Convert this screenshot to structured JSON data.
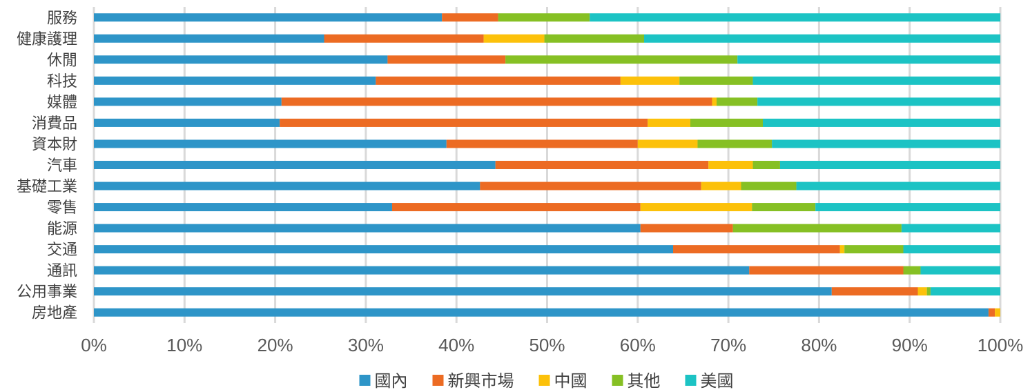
{
  "chart_data": {
    "type": "bar",
    "orientation": "horizontal",
    "stacked": "percent",
    "categories": [
      "服務",
      "健康護理",
      "休閒",
      "科技",
      "媒體",
      "消費品",
      "資本財",
      "汽車",
      "基礎工業",
      "零售",
      "能源",
      "交通",
      "通訊",
      "公用事業",
      "房地產"
    ],
    "series": [
      {
        "name": "國內",
        "color": "#2e95c8",
        "values": [
          38.4,
          25.4,
          32.4,
          31.1,
          20.7,
          20.5,
          38.9,
          44.3,
          42.6,
          32.9,
          60.3,
          63.9,
          72.3,
          81.4,
          98.7
        ]
      },
      {
        "name": "新興市場",
        "color": "#ec6b23",
        "values": [
          6.2,
          17.6,
          13.0,
          27.0,
          47.5,
          40.6,
          21.1,
          23.5,
          24.4,
          27.4,
          10.2,
          18.4,
          17.0,
          9.5,
          0.7
        ]
      },
      {
        "name": "中國",
        "color": "#fcc10a",
        "values": [
          0.0,
          6.7,
          0.0,
          6.5,
          0.5,
          4.7,
          6.6,
          4.9,
          4.4,
          12.3,
          0.0,
          0.5,
          0.0,
          1.0,
          0.6
        ]
      },
      {
        "name": "其他",
        "color": "#86c024",
        "values": [
          10.1,
          11.0,
          25.6,
          8.1,
          4.5,
          8.0,
          8.2,
          3.0,
          6.1,
          7.0,
          18.6,
          6.5,
          1.9,
          0.4,
          0.0
        ]
      },
      {
        "name": "美國",
        "color": "#1cc3c4",
        "values": [
          45.3,
          39.3,
          29.0,
          27.3,
          26.8,
          26.2,
          25.2,
          24.3,
          22.5,
          20.4,
          10.9,
          10.7,
          8.8,
          7.7,
          0.0
        ]
      }
    ],
    "xlim": [
      0,
      100
    ],
    "xticks": [
      "0%",
      "10%",
      "20%",
      "30%",
      "40%",
      "50%",
      "60%",
      "70%",
      "80%",
      "90%",
      "100%"
    ],
    "grid": true,
    "legend_position": "bottom"
  }
}
